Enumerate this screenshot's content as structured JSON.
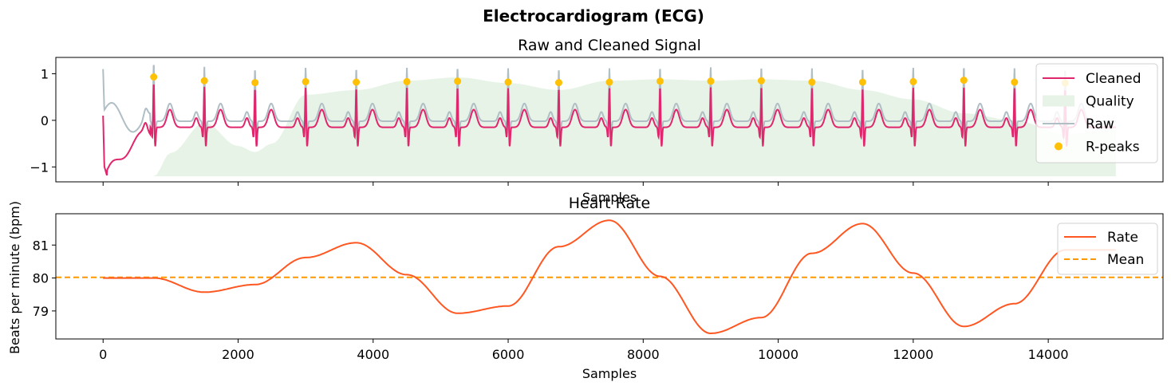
{
  "figure": {
    "suptitle": "Electrocardiogram (ECG)"
  },
  "chart_data": [
    {
      "type": "line",
      "title": "Raw and Cleaned Signal",
      "xlabel": "Samples",
      "ylabel": "",
      "xlim": [
        -700,
        15700
      ],
      "ylim": [
        -1.32,
        1.35
      ],
      "yticks": [
        -1,
        0,
        1
      ],
      "ytick_labels": [
        "−1",
        "0",
        "1"
      ],
      "xticks": [
        0,
        2000,
        4000,
        6000,
        8000,
        10000,
        12000,
        14000
      ],
      "xtick_labels_visible": false,
      "r_peaks": {
        "x": [
          750,
          1500,
          2250,
          3000,
          3750,
          4500,
          5250,
          6000,
          6750,
          7500,
          8250,
          9000,
          9750,
          10500,
          11250,
          12000,
          12750,
          13500,
          14250
        ],
        "y": [
          0.93,
          0.85,
          0.81,
          0.83,
          0.82,
          0.83,
          0.84,
          0.82,
          0.81,
          0.82,
          0.84,
          0.84,
          0.85,
          0.82,
          0.82,
          0.83,
          0.86,
          0.82,
          0.8
        ]
      },
      "quality": {
        "baseline": -1.2,
        "x": [
          750,
          1000,
          1500,
          2000,
          2250,
          2500,
          3000,
          3750,
          4500,
          5250,
          6000,
          6750,
          7500,
          8250,
          9000,
          9750,
          10500,
          11250,
          12000,
          12750,
          13500,
          14250,
          15000
        ],
        "y": [
          -1.2,
          -0.7,
          -0.05,
          -0.55,
          -0.68,
          -0.5,
          0.55,
          0.65,
          0.85,
          0.92,
          0.8,
          0.65,
          0.85,
          0.88,
          0.85,
          0.88,
          0.85,
          0.65,
          0.45,
          0.15,
          0.0,
          -0.3,
          -0.2
        ]
      },
      "legend": {
        "position": "upper-right",
        "entries": [
          {
            "label": "Cleaned",
            "kind": "line",
            "color": "#e0266c"
          },
          {
            "label": "Quality",
            "kind": "patch",
            "color": "#e6f3e6"
          },
          {
            "label": "Raw",
            "kind": "line",
            "color": "#b0bec5"
          },
          {
            "label": "R-peaks",
            "kind": "marker",
            "color": "#ffc107"
          }
        ]
      }
    },
    {
      "type": "line",
      "title": "Heart Rate",
      "xlabel": "Samples",
      "ylabel": "Beats per minute (bpm)",
      "xlim": [
        -700,
        15700
      ],
      "ylim": [
        78.15,
        81.95
      ],
      "yticks": [
        79,
        80,
        81
      ],
      "ytick_labels": [
        "79",
        "80",
        "81"
      ],
      "xticks": [
        0,
        2000,
        4000,
        6000,
        8000,
        10000,
        12000,
        14000
      ],
      "xtick_labels": [
        "0",
        "2000",
        "4000",
        "6000",
        "8000",
        "10000",
        "12000",
        "14000"
      ],
      "mean": 80.02,
      "rate": {
        "x": [
          0,
          750,
          1500,
          2250,
          3000,
          3750,
          4500,
          5250,
          6000,
          6750,
          7500,
          8250,
          9000,
          9750,
          10500,
          11250,
          12000,
          12750,
          13500,
          14250,
          15000
        ],
        "y": [
          80.0,
          80.0,
          79.57,
          79.8,
          80.62,
          81.07,
          80.1,
          78.93,
          79.15,
          80.95,
          81.75,
          80.05,
          78.32,
          78.8,
          80.75,
          81.65,
          80.15,
          78.53,
          79.22,
          80.85,
          80.85
        ]
      },
      "legend": {
        "position": "upper-right",
        "entries": [
          {
            "label": "Rate",
            "kind": "line",
            "color": "#ff5722"
          },
          {
            "label": "Mean",
            "kind": "dashed",
            "color": "#ff9800"
          }
        ]
      }
    }
  ]
}
